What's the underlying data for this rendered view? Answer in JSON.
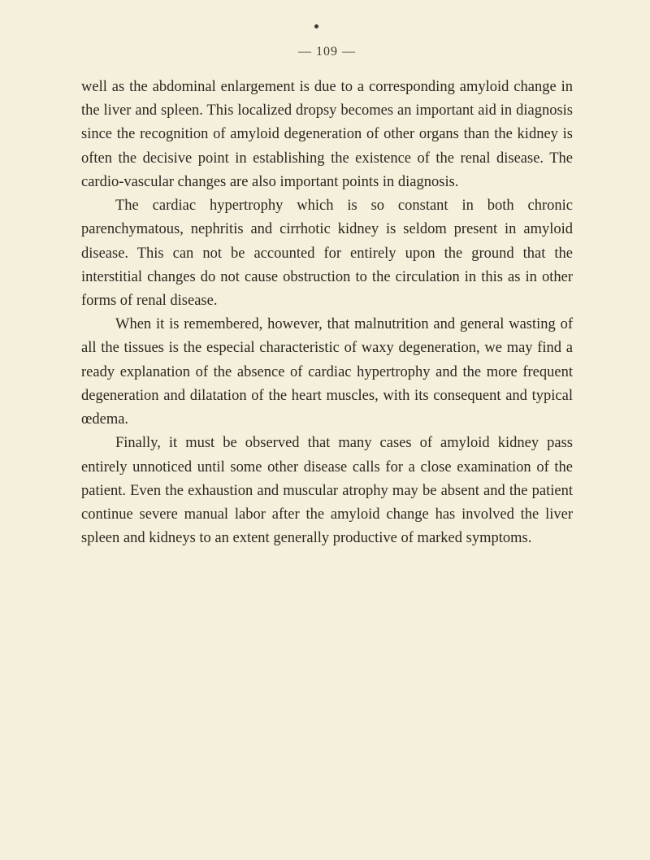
{
  "page_number": "— 109 —",
  "paragraphs": [
    {
      "text": "well as the abdominal enlargement is due to a corresponding amyloid change in the liver and spleen. This localized dropsy becomes an important aid in diagnosis since the recognition of amyloid degeneration of other organs than the kidney is often the decisive point in establishing the existence of the renal disease. The cardio-vascular changes are also important points in diagnosis.",
      "indent": false
    },
    {
      "text": "The cardiac hypertrophy which is so constant in both chronic parenchymatous, nephritis and cirrhotic kidney is seldom present in amyloid disease. This can not be accounted for entirely upon the ground that the interstitial changes do not cause obstruction to the circulation in this as in other forms of renal disease.",
      "indent": true
    },
    {
      "text": "When it is remembered, however, that malnutrition and general wasting of all the tissues is the especial characteristic of waxy degeneration, we may find a ready explanation of the absence of cardiac hypertrophy and the more frequent degeneration and dilatation of the heart muscles, with its consequent and typical œdema.",
      "indent": true
    },
    {
      "text": "Finally, it must be observed that many cases of amyloid kidney pass entirely unnoticed until some other disease calls for a close examination of the patient. Even the exhaustion and muscular atrophy may be absent and the patient continue severe manual labor after the amyloid change has involved the liver spleen and kidneys to an extent generally productive of marked symptoms.",
      "indent": true
    }
  ],
  "colors": {
    "background": "#f5f0dc",
    "text": "#2a2820",
    "header": "#3a3830"
  },
  "typography": {
    "body_font_size": 18.5,
    "line_height": 1.58,
    "indent_size": 42
  }
}
